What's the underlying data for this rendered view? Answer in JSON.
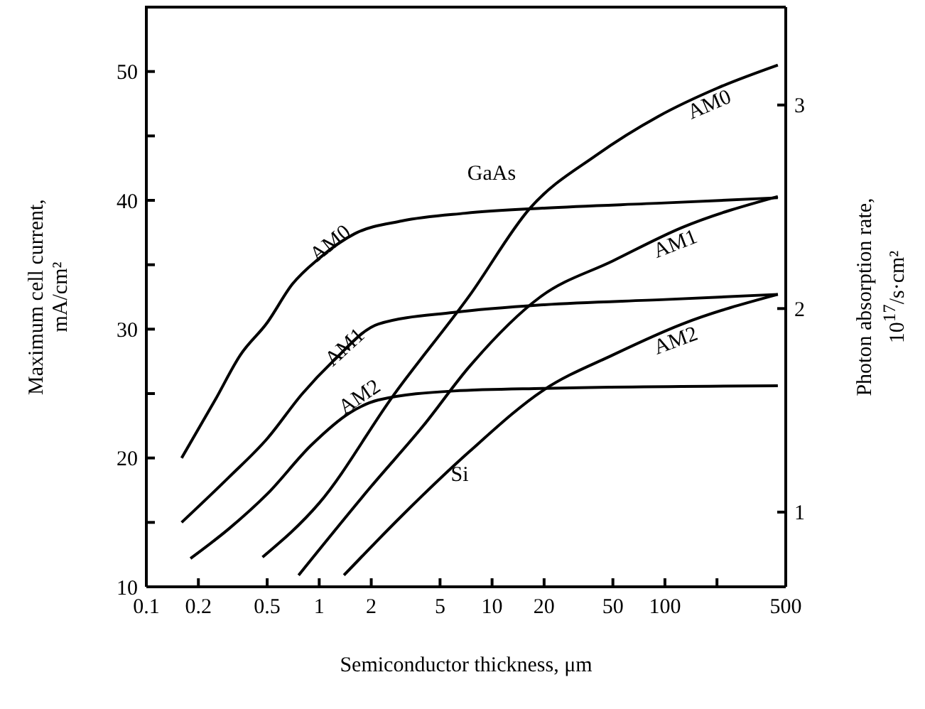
{
  "chart_data": {
    "type": "line",
    "xlabel": "Semiconductor thickness, μm",
    "ylabel": "Maximum cell current,\nmA/cm²",
    "y2label": "Photon absorption rate,\n10$^{17}$/s·cm²",
    "log": "x",
    "grid": false,
    "legend": false,
    "marker": "none",
    "line_style": "solid",
    "xlim": [
      0.1,
      500
    ],
    "xticks": [
      0.1,
      0.2,
      0.5,
      1,
      2,
      5,
      10,
      20,
      50,
      100,
      {
        "value": 200,
        "label": null
      },
      500
    ],
    "ylim": [
      10,
      55
    ],
    "yticks": [
      10,
      {
        "value": 15,
        "label": null
      },
      20,
      {
        "value": 25,
        "label": null
      },
      30,
      {
        "value": 35,
        "label": null
      },
      40,
      {
        "value": 45,
        "label": null
      },
      50
    ],
    "y2lim": [
      0.633,
      3.481
    ],
    "y2ticks": [
      1,
      2,
      3
    ],
    "series": [
      {
        "color": "#000000",
        "x": [
          0.16,
          0.25,
          0.35,
          0.5,
          0.7,
          1,
          1.6,
          3,
          7,
          20,
          100,
          450
        ],
        "values": [
          20,
          24.5,
          28,
          30.5,
          33.5,
          35.5,
          37.4,
          38.4,
          39,
          39.4,
          39.8,
          40.2
        ]
      },
      {
        "color": "#000000",
        "x": [
          0.16,
          0.3,
          0.5,
          0.8,
          1.2,
          2.2,
          6,
          20,
          100,
          450
        ],
        "values": [
          15,
          18.5,
          21.5,
          25,
          27.5,
          30.4,
          31.3,
          31.9,
          32.3,
          32.7
        ]
      },
      {
        "color": "#000000",
        "x": [
          0.18,
          0.3,
          0.5,
          0.9,
          1.5,
          2.2,
          6,
          20,
          450
        ],
        "values": [
          12.2,
          14.5,
          17.2,
          21,
          23.5,
          24.5,
          25.2,
          25.4,
          25.6
        ]
      },
      {
        "color": "#000000",
        "x": [
          0.47,
          1,
          2.7,
          7.4,
          16.6,
          40,
          91,
          200,
          450
        ],
        "values": [
          12.3,
          16.5,
          24.9,
          32.6,
          39.4,
          43.5,
          46.5,
          48.7,
          50.5
        ]
      },
      {
        "color": "#000000",
        "x": [
          0.76,
          2,
          4,
          7.4,
          19,
          50,
          126,
          450
        ],
        "values": [
          10.9,
          17.8,
          22.5,
          27.1,
          32.5,
          35.3,
          37.9,
          40.3
        ]
      },
      {
        "color": "#000000",
        "x": [
          1.39,
          3,
          7.4,
          20,
          50,
          126,
          450
        ],
        "values": [
          10.9,
          15.5,
          20.5,
          25.3,
          28,
          30.4,
          32.7
        ]
      }
    ],
    "annotations": [
      "GaAs",
      {
        "text": "AM0",
        "x": 1,
        "y": 35.5
      },
      {
        "text": "AM1",
        "x": 1.2,
        "y": 27.5
      },
      {
        "text": "AM2",
        "x": 1.5,
        "y": 23.5
      },
      "Si",
      {
        "text": "AM0",
        "x": 200,
        "y": 48.7
      },
      {
        "text": "AM1",
        "x": 126,
        "y": 37.9
      },
      {
        "text": "AM2",
        "x": 126,
        "y": 30.4
      }
    ]
  }
}
